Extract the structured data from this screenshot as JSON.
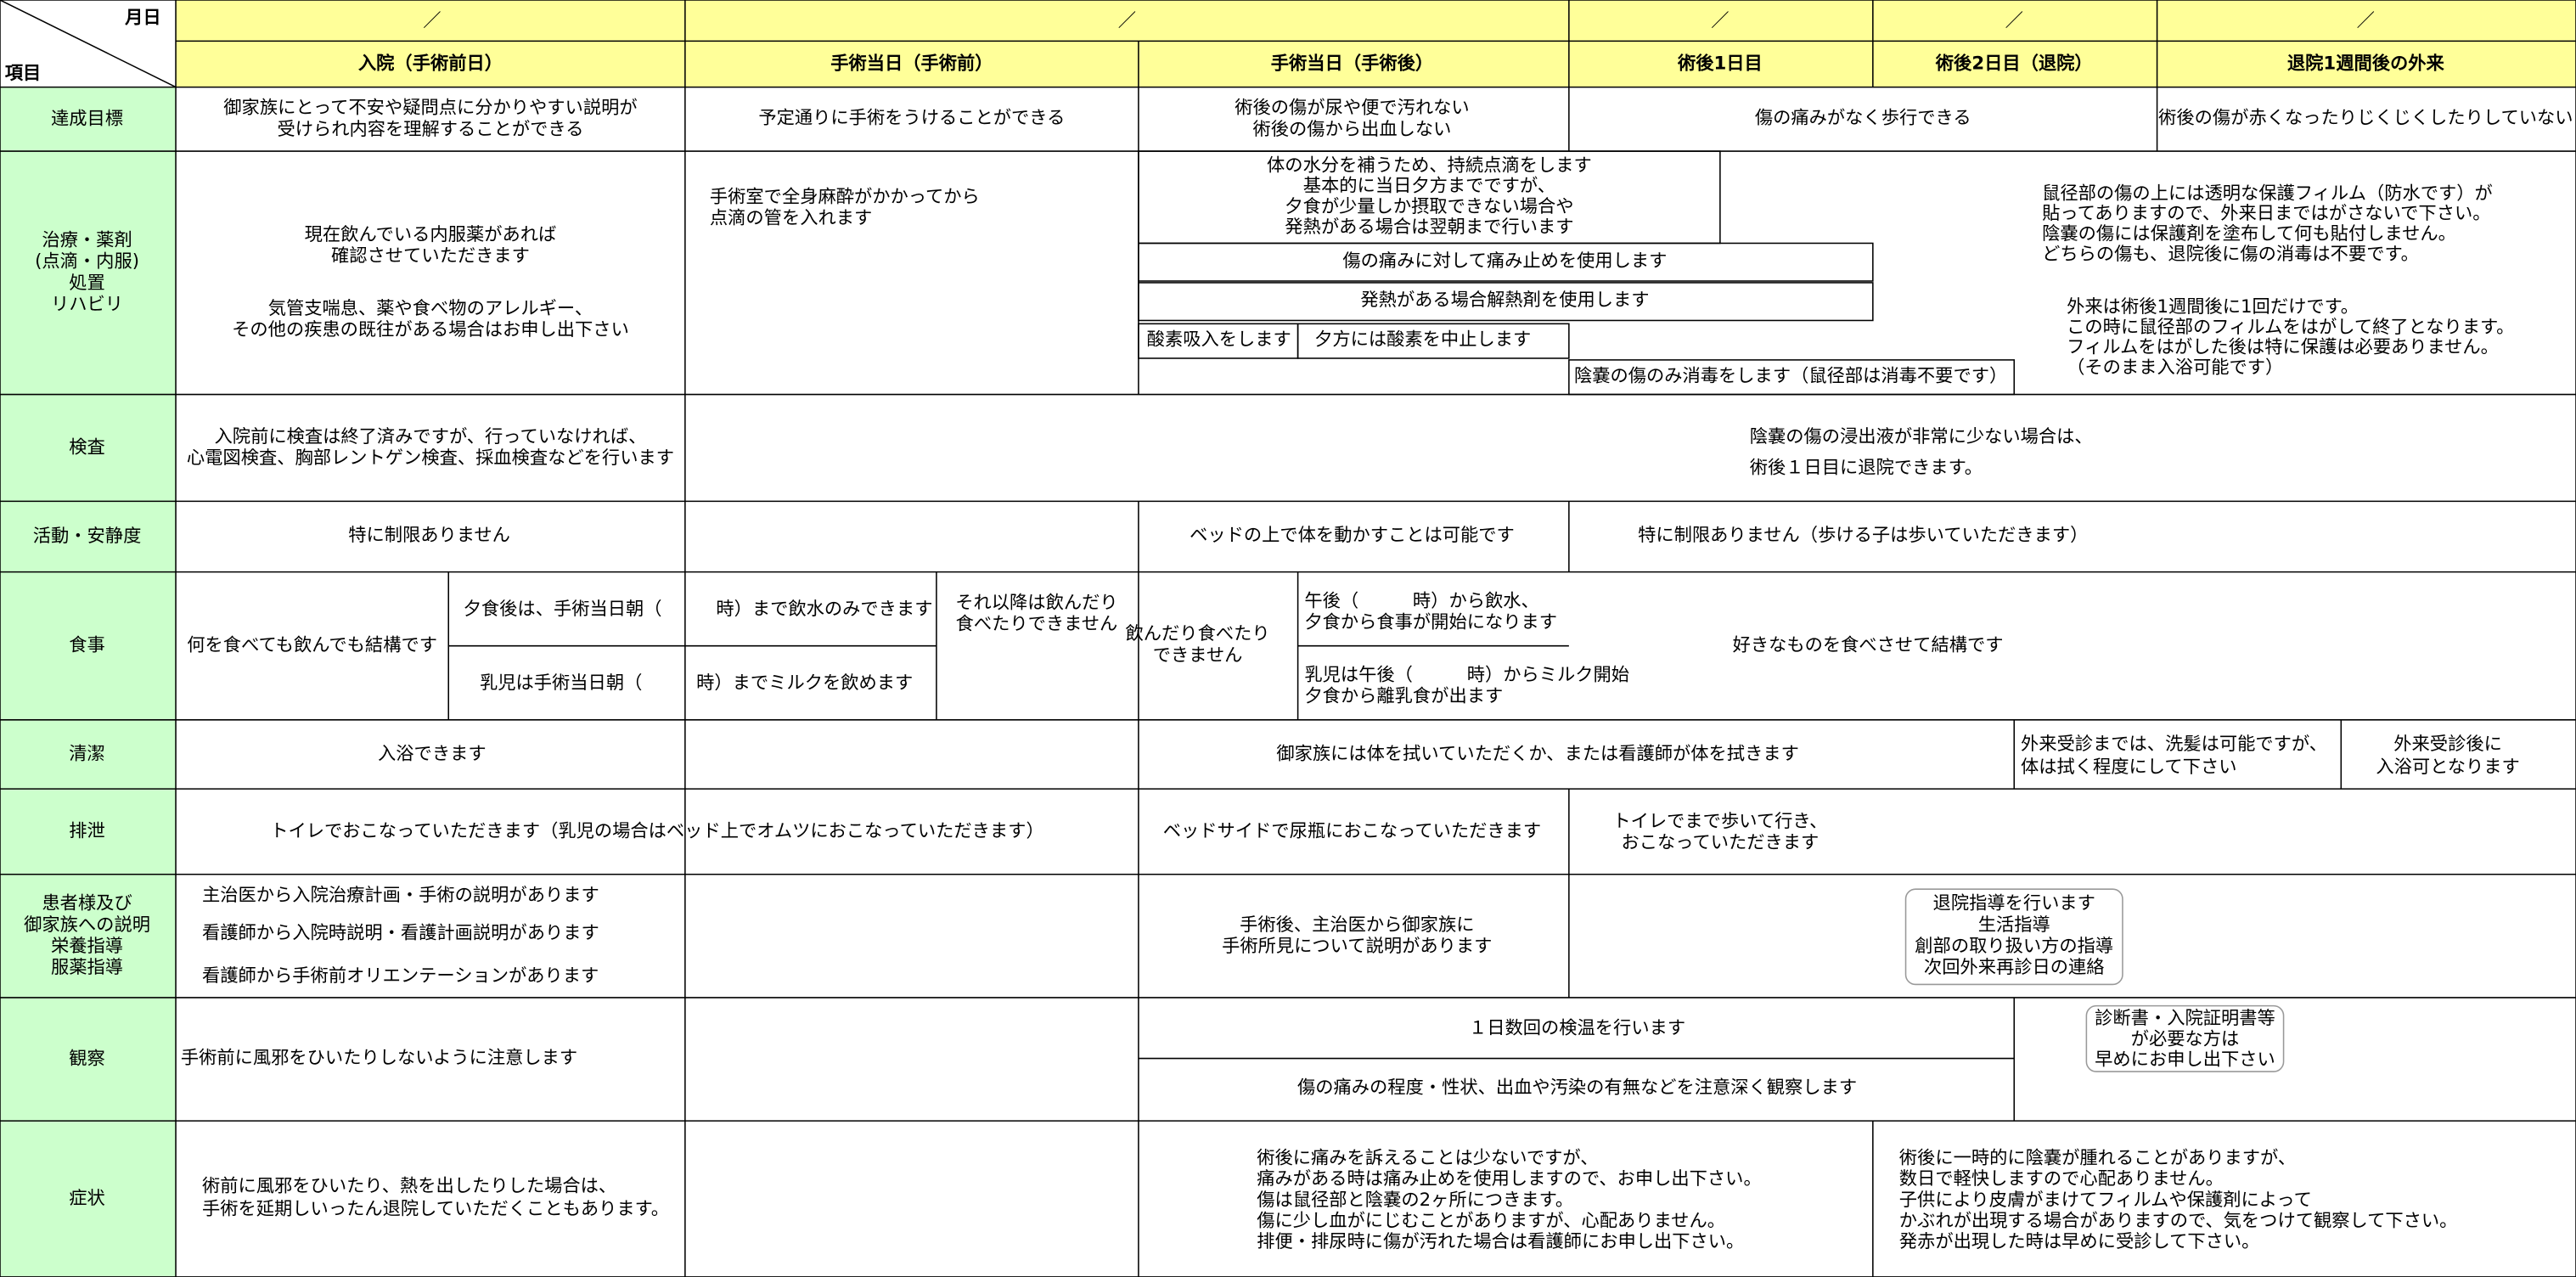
{
  "header": {
    "date_label": "月日",
    "item_label": "項目",
    "dates": [
      "／",
      "／",
      "／",
      "／",
      "／"
    ],
    "columns": [
      "入院（手術前日）",
      "手術当日（手術前）",
      "手術当日（手術後）",
      "術後1日目",
      "術後2日目（退院）",
      "退院1週間後の外来"
    ]
  },
  "rows": [
    {
      "label": [
        "達成目標"
      ],
      "cells": [
        [
          "御家族にとって不安や疑問点に分かりやすい説明が",
          "受けられ内容を理解することができる"
        ],
        [
          "予定通りに手術をうけることができる"
        ],
        [
          "術後の傷が尿や便で汚れない",
          "術後の傷から出血しない"
        ],
        [
          "傷の痛みがなく歩行できる"
        ],
        [
          "術後の傷が赤くなったりじくじくしたりしていない"
        ]
      ]
    },
    {
      "label": [
        "治療・薬剤",
        "(点滴・内服)",
        "処置",
        "リハビリ"
      ],
      "cells": [
        [
          "現在飲んでいる内服薬があれば",
          "確認させていただきます"
        ],
        [
          "気管支喘息、薬や食べ物のアレルギー、",
          "その他の疾患の既往がある場合はお申し出下さい"
        ],
        [
          "手術室で全身麻酔がかかってから",
          "点滴の管を入れます"
        ],
        [
          "体の水分を補うため、持続点滴をします",
          "基本的に当日夕方までですが、",
          "夕食が少量しか摂取できない場合や",
          "発熱がある場合は翌朝まで行います"
        ],
        [
          "傷の痛みに対して痛み止めを使用します"
        ],
        [
          "発熱がある場合解熱剤を使用します"
        ],
        [
          "酸素吸入をします"
        ],
        [
          "夕方には酸素を中止します"
        ],
        [
          "陰嚢の傷のみ消毒をします（鼠径部は消毒不要です）"
        ],
        [
          "鼠径部の傷の上には透明な保護フィルム（防水です）が",
          "貼ってありますので、外来日まではがさないで下さい。",
          "陰嚢の傷には保護剤を塗布して何も貼付しません。",
          "どちらの傷も、退院後に傷の消毒は不要です。"
        ],
        [
          "外来は術後1週間後に1回だけです。",
          "この時に鼠径部のフィルムをはがして終了となります。",
          "フィルムをはがした後は特に保護は必要ありません。",
          "（そのまま入浴可能です）"
        ]
      ]
    },
    {
      "label": [
        "検査"
      ],
      "cells": [
        [
          "入院前に検査は終了済みですが、行っていなければ、",
          "心電図検査、胸部レントゲン検査、採血検査などを行います"
        ],
        [
          "陰嚢の傷の浸出液が非常に少ない場合は、",
          "術後１日目に退院できます。"
        ]
      ]
    },
    {
      "label": [
        "活動・安静度"
      ],
      "cells": [
        [
          "特に制限ありません"
        ],
        [
          "ベッドの上で体を動かすことは可能です"
        ],
        [
          "特に制限ありません（歩ける子は歩いていただきます）"
        ]
      ]
    },
    {
      "label": [
        "食事"
      ],
      "cells": [
        [
          "何を食べても飲んでも結構です"
        ],
        [
          "夕食後は、手術当日朝（　　　時）まで飲水のみできます"
        ],
        [
          "乳児は手術当日朝（　　　時）までミルクを飲めます"
        ],
        [
          "それ以降は飲んだり",
          "食べたりできません"
        ],
        [
          "飲んだり食べたり",
          "できません"
        ],
        [
          "午後（　　　時）から飲水、",
          "夕食から食事が開始になります"
        ],
        [
          "乳児は午後（　　　時）からミルク開始",
          "夕食から離乳食が出ます"
        ],
        [
          "好きなものを食べさせて結構です"
        ]
      ]
    },
    {
      "label": [
        "清潔"
      ],
      "cells": [
        [
          "入浴できます"
        ],
        [
          "御家族には体を拭いていただくか、または看護師が体を拭きます"
        ],
        [
          "外来受診までは、洗髪は可能ですが、",
          "体は拭く程度にして下さい"
        ],
        [
          "外来受診後に",
          "入浴可となります"
        ]
      ]
    },
    {
      "label": [
        "排泄"
      ],
      "cells": [
        [
          "トイレでおこなっていただきます（乳児の場合はベッド上でオムツにおこなっていただきます）"
        ],
        [
          "ベッドサイドで尿瓶におこなっていただきます"
        ],
        [
          "トイレでまで歩いて行き、",
          "おこなっていただきます"
        ]
      ]
    },
    {
      "label": [
        "患者様及び",
        "御家族への説明",
        "栄養指導",
        "服薬指導"
      ],
      "cells": [
        [
          "主治医から入院治療計画・手術の説明があります"
        ],
        [
          "看護師から入院時説明・看護計画説明があります"
        ],
        [
          "看護師から手術前オリエンテーションがあります"
        ],
        [
          "手術後、主治医から御家族に",
          "手術所見について説明があります"
        ],
        [
          "退院指導を行います",
          "生活指導",
          "創部の取り扱い方の指導",
          "次回外来再診日の連絡"
        ]
      ]
    },
    {
      "label": [
        "観察"
      ],
      "cells": [
        [
          "手術前に風邪をひいたりしないように注意します"
        ],
        [
          "１日数回の検温を行います"
        ],
        [
          "傷の痛みの程度・性状、出血や汚染の有無などを注意深く観察します"
        ],
        [
          "診断書・入院証明書等",
          "が必要な方は",
          "早めにお申し出下さい"
        ]
      ]
    },
    {
      "label": [
        "症状"
      ],
      "cells": [
        [
          "術前に風邪をひいたり、熱を出したりした場合は、",
          "手術を延期しいったん退院していただくこともあります。"
        ],
        [
          "術後に痛みを訴えることは少ないですが、",
          "痛みがある時は痛み止めを使用しますので、お申し出下さい。",
          "傷は鼠径部と陰嚢の2ヶ所につきます。",
          "傷に少し血がにじむことがありますが、心配ありません。",
          "排便・排尿時に傷が汚れた場合は看護師にお申し出下さい。"
        ],
        [
          "術後に一時的に陰嚢が腫れることがありますが、",
          "数日で軽快しますので心配ありません。",
          "子供により皮膚がまけてフィルムや保護剤によって",
          "かぶれが出現する場合がありますので、気をつけて観察して下さい。",
          "発赤が出現した時は早めに受診して下さい。"
        ]
      ]
    }
  ]
}
